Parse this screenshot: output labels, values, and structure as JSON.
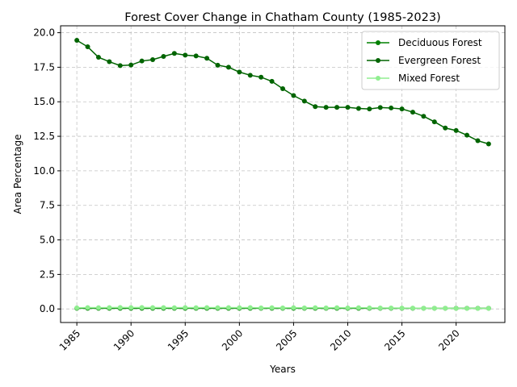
{
  "chart_data": {
    "type": "line",
    "title": "Forest Cover Change in Chatham County (1985-2023)",
    "xlabel": "Years",
    "ylabel": "Area Percentage",
    "xlim": [
      1983.5,
      2024.5
    ],
    "ylim": [
      -0.98,
      20.5
    ],
    "xticks": [
      1985,
      1990,
      1995,
      2000,
      2005,
      2010,
      2015,
      2020
    ],
    "yticks": [
      "0.0",
      "2.5",
      "5.0",
      "7.5",
      "10.0",
      "12.5",
      "15.0",
      "17.5",
      "20.0"
    ],
    "grid": true,
    "legend_position": "upper right",
    "x": [
      1985,
      1986,
      1987,
      1988,
      1989,
      1990,
      1991,
      1992,
      1993,
      1994,
      1995,
      1996,
      1997,
      1998,
      1999,
      2000,
      2001,
      2002,
      2003,
      2004,
      2005,
      2006,
      2007,
      2008,
      2009,
      2010,
      2011,
      2012,
      2013,
      2014,
      2015,
      2016,
      2017,
      2018,
      2019,
      2020,
      2021,
      2022,
      2023
    ],
    "series": [
      {
        "name": "Deciduous Forest",
        "color": "#008000",
        "values": [
          0.05,
          0.05,
          0.05,
          0.05,
          0.05,
          0.05,
          0.05,
          0.05,
          0.05,
          0.05,
          0.05,
          0.05,
          0.05,
          0.05,
          0.05,
          0.05,
          0.05,
          0.05,
          0.05,
          0.05,
          0.05,
          0.05,
          0.05,
          0.05,
          0.05,
          0.05,
          0.05,
          0.05,
          0.05,
          0.05,
          0.05,
          0.05,
          0.05,
          0.05,
          0.05,
          0.05,
          0.05,
          0.05,
          0.05
        ]
      },
      {
        "name": "Evergreen Forest",
        "color": "#006400",
        "values": [
          19.45,
          18.98,
          18.22,
          17.9,
          17.62,
          17.66,
          17.95,
          18.05,
          18.28,
          18.5,
          18.38,
          18.32,
          18.15,
          17.65,
          17.5,
          17.15,
          16.92,
          16.78,
          16.48,
          15.95,
          15.45,
          15.05,
          14.65,
          14.6,
          14.6,
          14.6,
          14.52,
          14.48,
          14.58,
          14.55,
          14.48,
          14.25,
          13.95,
          13.55,
          13.1,
          12.92,
          12.58,
          12.18,
          11.95
        ]
      },
      {
        "name": "Mixed Forest",
        "color": "#90ee90",
        "values": [
          0.08,
          0.1,
          0.09,
          0.1,
          0.11,
          0.1,
          0.11,
          0.1,
          0.1,
          0.09,
          0.1,
          0.09,
          0.1,
          0.09,
          0.1,
          0.09,
          0.1,
          0.08,
          0.09,
          0.08,
          0.09,
          0.08,
          0.09,
          0.08,
          0.09,
          0.08,
          0.09,
          0.08,
          0.07,
          0.07,
          0.06,
          0.06,
          0.05,
          0.05,
          0.05,
          0.04,
          0.04,
          0.04,
          0.04
        ]
      }
    ]
  }
}
